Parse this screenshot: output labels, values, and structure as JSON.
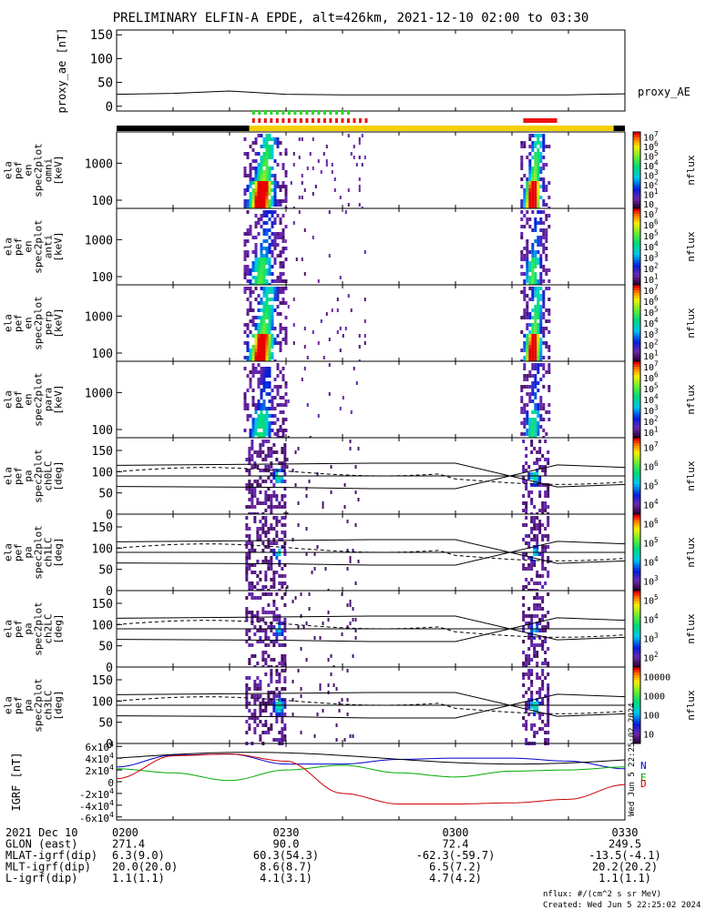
{
  "header": {
    "title": "PRELIMINARY ELFIN-A EPDE, alt=426km, 2021-12-10 02:00 to 03:30"
  },
  "colors": {
    "bg": "#ffffff",
    "axis": "#000000",
    "ae": "#000000",
    "bar_black": "#000000",
    "bar_yellow": "#f5d000",
    "flag_green": "#22dd22",
    "flag_red": "#ee1111",
    "grf_n": "#0000cc",
    "grf_e": "#00aa00",
    "grf_d": "#cc0000"
  },
  "footer": {
    "rows": [
      {
        "label": "2021 Dec 10",
        "values": [
          "0200",
          "0230",
          "0300",
          "0330"
        ]
      },
      {
        "label": "GLON (east)",
        "values": [
          "271.4",
          "90.0",
          "72.4",
          "249.5"
        ]
      },
      {
        "label": "MLAT-igrf(dip)",
        "values": [
          "6.3(9.0)",
          "60.3(54.3)",
          "-62.3(-59.7)",
          "-13.5(-4.1)"
        ]
      },
      {
        "label": "MLT-igrf(dip)",
        "values": [
          "20.0(20.0)",
          "8.6(8.7)",
          "6.5(7.2)",
          "20.2(20.2)"
        ]
      },
      {
        "label": "L-igrf(dip)",
        "values": [
          "1.1(1.1)",
          "4.1(3.1)",
          "4.7(4.2)",
          "1.1(1.1)"
        ]
      }
    ],
    "units_note": "nflux: #/(cm^2 s sr MeV)",
    "created": "Created: Wed Jun  5 22:25:02 2024",
    "side_stamp": "Wed Jun  5 22:25:02 2024"
  },
  "chart_data": [
    {
      "type": "line",
      "id": "proxy_ae",
      "ylabel": "proxy_ae [nT]",
      "series_label": "proxy_AE",
      "yticks": [
        "0",
        "50",
        "100",
        "150"
      ],
      "ylim": [
        -10,
        160
      ],
      "x_minutes": [
        0,
        10,
        20,
        30,
        40,
        50,
        60,
        70,
        80,
        90
      ],
      "values": [
        25,
        27,
        32,
        25,
        24,
        24,
        24,
        24,
        24,
        26
      ]
    },
    {
      "type": "heatmap",
      "id": "en_omni",
      "ylabel": [
        "ela",
        "pef",
        "en",
        "spec2plot",
        "omni",
        "[keV]"
      ],
      "yticks": [
        "100",
        "1000"
      ],
      "ylim": [
        60,
        7000
      ],
      "zlabel": "nflux",
      "zticks": [
        "10",
        "10^1",
        "10^2",
        "10^3",
        "10^4",
        "10^5",
        "10^6",
        "10^7"
      ],
      "zlim": [
        10,
        10000000
      ]
    },
    {
      "type": "heatmap",
      "id": "en_anti",
      "ylabel": [
        "ela",
        "pef",
        "en",
        "spec2plot",
        "anti",
        "[keV]"
      ],
      "yticks": [
        "100",
        "1000"
      ],
      "ylim": [
        60,
        7000
      ],
      "zlabel": "nflux",
      "zticks": [
        "10^1",
        "10^2",
        "10^3",
        "10^4",
        "10^5",
        "10^6",
        "10^7"
      ],
      "zlim": [
        10,
        10000000
      ]
    },
    {
      "type": "heatmap",
      "id": "en_perp",
      "ylabel": [
        "ela",
        "pef",
        "en",
        "spec2plot",
        "perp",
        "[keV]"
      ],
      "yticks": [
        "100",
        "1000"
      ],
      "ylim": [
        60,
        7000
      ],
      "zlabel": "nflux",
      "zticks": [
        "10^1",
        "10^2",
        "10^3",
        "10^4",
        "10^5",
        "10^6",
        "10^7"
      ],
      "zlim": [
        10,
        10000000
      ]
    },
    {
      "type": "heatmap",
      "id": "en_para",
      "ylabel": [
        "ela",
        "pef",
        "en",
        "spec2plot",
        "para",
        "[keV]"
      ],
      "yticks": [
        "100",
        "1000"
      ],
      "ylim": [
        60,
        7000
      ],
      "zlabel": "nflux",
      "zticks": [
        "10^1",
        "10^2",
        "10^3",
        "10^4",
        "10^5",
        "10^6",
        "10^7"
      ],
      "zlim": [
        10,
        10000000
      ]
    },
    {
      "type": "heatmap",
      "id": "pa_ch0",
      "ylabel": [
        "ela",
        "pef",
        "pa",
        "spec2plot",
        "ch0LC",
        "[deg]"
      ],
      "yticks": [
        "0",
        "50",
        "100",
        "150"
      ],
      "ylim": [
        0,
        180
      ],
      "zlabel": "nflux",
      "zticks": [
        "10^4",
        "10^5",
        "10^6",
        "10^7"
      ],
      "zlim": [
        3000,
        10000000
      ]
    },
    {
      "type": "heatmap",
      "id": "pa_ch1",
      "ylabel": [
        "ela",
        "pef",
        "pa",
        "spec2plot",
        "ch1LC",
        "[deg]"
      ],
      "yticks": [
        "0",
        "50",
        "100",
        "150"
      ],
      "ylim": [
        0,
        180
      ],
      "zlabel": "nflux",
      "zticks": [
        "10^3",
        "10^4",
        "10^5",
        "10^6"
      ],
      "zlim": [
        1000,
        3000000
      ]
    },
    {
      "type": "heatmap",
      "id": "pa_ch2",
      "ylabel": [
        "ela",
        "pef",
        "pa",
        "spec2plot",
        "ch2LC",
        "[deg]"
      ],
      "yticks": [
        "0",
        "50",
        "100",
        "150"
      ],
      "ylim": [
        0,
        180
      ],
      "zlabel": "nflux",
      "zticks": [
        "10^2",
        "10^3",
        "10^4",
        "10^5"
      ],
      "zlim": [
        100,
        1000000
      ]
    },
    {
      "type": "heatmap",
      "id": "pa_ch3",
      "ylabel": [
        "ela",
        "pef",
        "pa",
        "spec2plot",
        "ch3LC",
        "[deg]"
      ],
      "yticks": [
        "0",
        "50",
        "100",
        "150"
      ],
      "ylim": [
        0,
        180
      ],
      "zlabel": "nflux",
      "zticks": [
        "10",
        "100",
        "1000",
        "10000"
      ],
      "zlim": [
        10,
        30000
      ]
    },
    {
      "type": "line",
      "id": "igrf",
      "ylabel": "IGRF [nT]",
      "yticks": [
        "-6x10^4",
        "-4x10^4",
        "-2x10^4",
        "0",
        "2x10^4",
        "4x10^4",
        "6x10^4"
      ],
      "ylim": [
        -65000,
        65000
      ],
      "x_minutes": [
        0,
        10,
        20,
        30,
        40,
        50,
        60,
        70,
        80,
        90
      ],
      "series": [
        {
          "name": "N",
          "values": [
            25000,
            45000,
            47000,
            30000,
            30000,
            38000,
            40000,
            40000,
            35000,
            22000
          ]
        },
        {
          "name": "E",
          "values": [
            22000,
            15000,
            2000,
            20000,
            28000,
            15000,
            8000,
            18000,
            20000,
            25000
          ]
        },
        {
          "name": "D",
          "values": [
            5000,
            44000,
            47000,
            35000,
            -20000,
            -38000,
            -38000,
            -36000,
            -30000,
            -5000
          ]
        }
      ]
    }
  ],
  "spectra": {
    "col_a_min": [
      22.5,
      29.8
    ],
    "col_b_min": [
      71.5,
      76.5
    ]
  }
}
